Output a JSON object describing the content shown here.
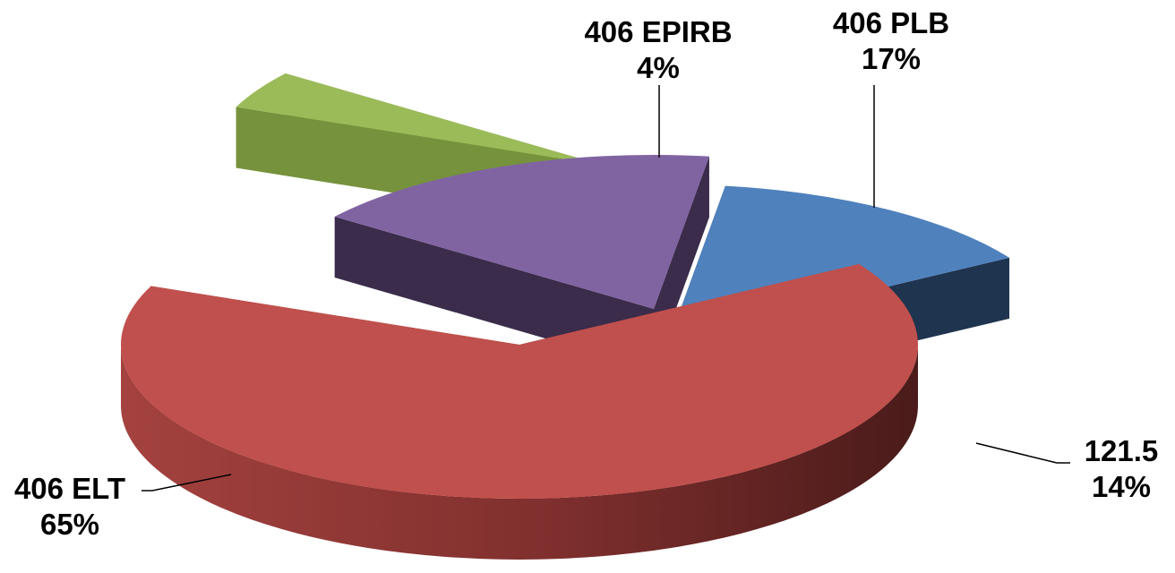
{
  "chart_data": {
    "type": "pie",
    "style": "3d-exploded",
    "title": "",
    "legend": "none",
    "slices": [
      {
        "label": "121.5",
        "value": 14,
        "percent_label": "14%",
        "color": "#4F81BD",
        "side_color": "#1F344F"
      },
      {
        "label": "406 ELT",
        "value": 65,
        "percent_label": "65%",
        "color": "#C0504D",
        "side_color": "#8E3634"
      },
      {
        "label": "406 EPIRB",
        "value": 4,
        "percent_label": "4%",
        "color": "#9BBB59",
        "side_color": "#76923C"
      },
      {
        "label": "406 PLB",
        "value": 17,
        "percent_label": "17%",
        "color": "#8064A2",
        "side_color": "#3A2C4A"
      }
    ]
  }
}
